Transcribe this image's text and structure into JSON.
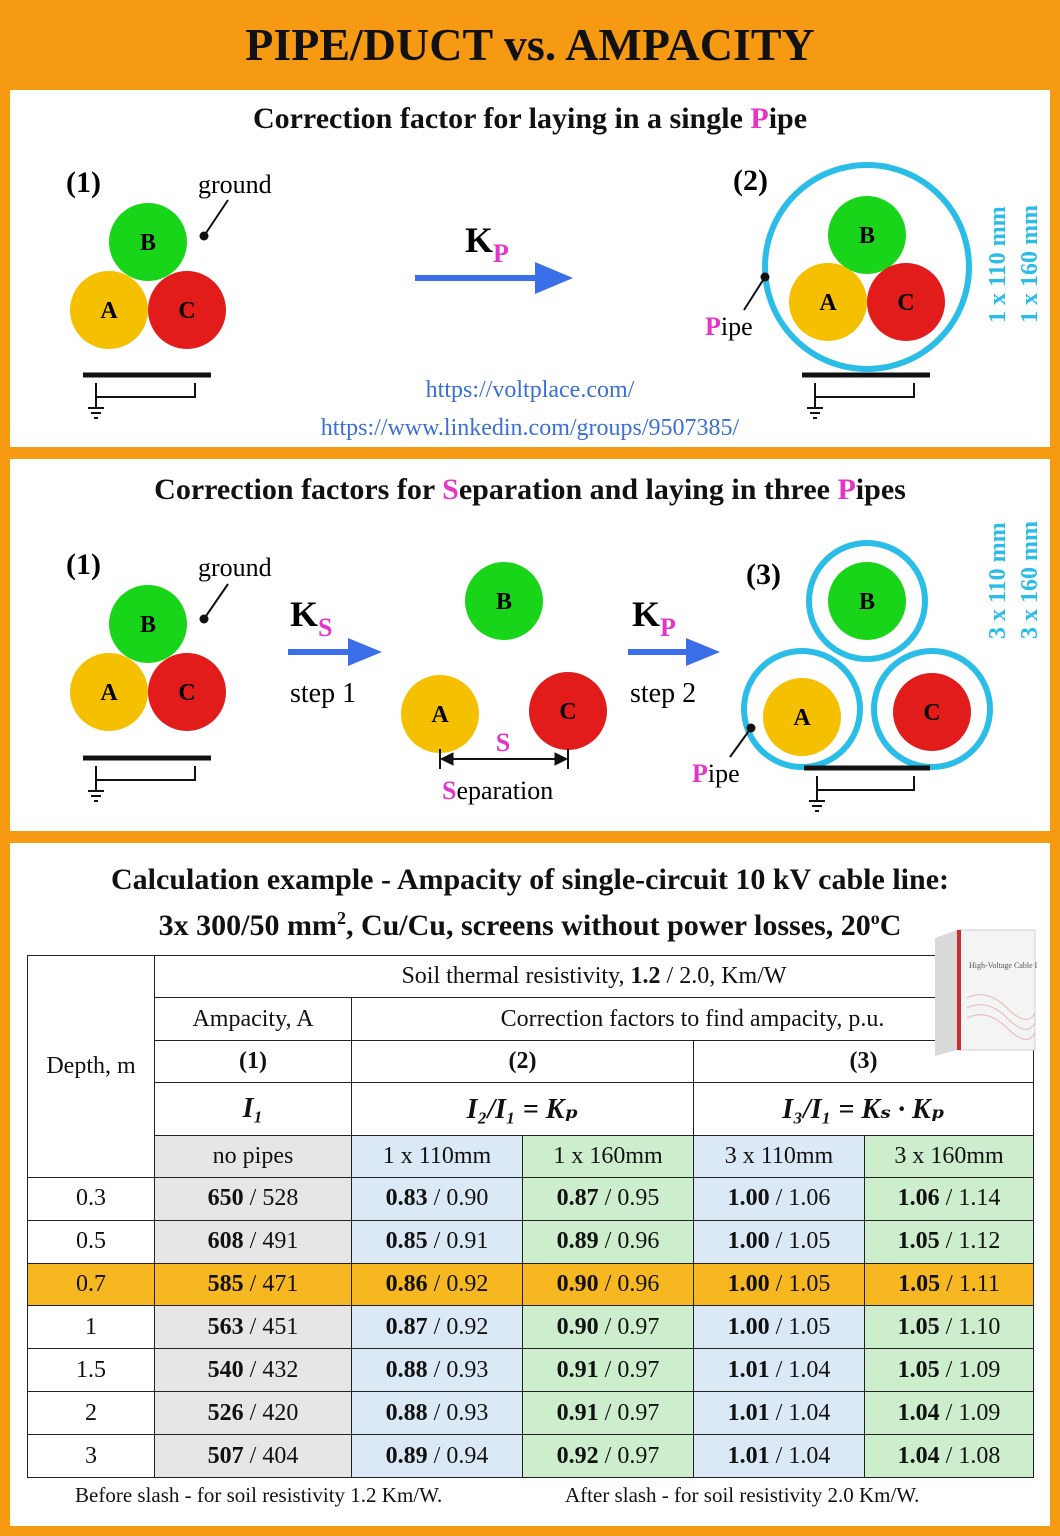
{
  "title": "PIPE/DUCT vs. AMPACITY",
  "colors": {
    "frame": "#f59a12",
    "pipe": "#29bde8",
    "arrow": "#3a6fe8",
    "accent": "#e535c9",
    "phaseA": "#f5c000",
    "phaseB": "#19d519",
    "phaseC": "#e21b1b"
  },
  "panel1": {
    "title_pre": "Correction factor for laying in a single ",
    "title_mag": "P",
    "title_post": "ipe",
    "label1": "(1)",
    "label2": "(2)",
    "ground": "ground",
    "phase_a": "A",
    "phase_b": "B",
    "phase_c": "C",
    "k_main": "K",
    "k_sub": "P",
    "pipe_mag": "P",
    "pipe_rest": "ipe",
    "size1": "1 x 110 mm",
    "size2": "1 x 160 mm",
    "link1": "https://voltplace.com/",
    "link2": "https://www.linkedin.com/groups/9507385/"
  },
  "panel2": {
    "title_pre": "Correction factors for ",
    "title_mag1": "S",
    "title_mid": "eparation and laying in three ",
    "title_mag2": "P",
    "title_post": "ipes",
    "label1": "(1)",
    "label3": "(3)",
    "ground": "ground",
    "phase_a": "A",
    "phase_b": "B",
    "phase_c": "C",
    "ks_main": "K",
    "ks_sub": "S",
    "kp_main": "K",
    "kp_sub": "P",
    "step1": "step 1",
    "step2": "step 2",
    "s_letter": "S",
    "sep_mag": "S",
    "sep_rest": "eparation",
    "pipe_mag": "P",
    "pipe_rest": "ipe",
    "size1": "3 x 110 mm",
    "size2": "3 x 160 mm"
  },
  "panel3": {
    "line1": "Calculation example - Ampacity of single-circuit 10 kV cable line:",
    "line2_pre": "3x 300/50 mm",
    "line2_sup": "2",
    "line2_mid": ", Cu/Cu, screens without power losses, 20",
    "line2_sup2": "o",
    "line2_post": "C",
    "book_title": "High-Voltage Cable Lines",
    "table": {
      "depth_header": "Depth, m",
      "soil_pre": "Soil thermal resistivity, ",
      "soil_bold": "1.2",
      "soil_post": " / 2.0, Km/W",
      "ampacity": "Ampacity, A",
      "correction": "Correction factors to find ampacity, p.u.",
      "col1": "(1)",
      "col2": "(2)",
      "col3": "(3)",
      "f1": "I₁",
      "f2": "I₂/I₁ = Kₚ",
      "f3": "I₃/I₁ = Kₛ · Kₚ",
      "sub_headers": [
        "no pipes",
        "1 x 110mm",
        "1 x 160mm",
        "3 x 110mm",
        "3 x 160mm"
      ],
      "rows": [
        {
          "depth": "0.3",
          "cells": [
            [
              "650",
              "528"
            ],
            [
              "0.83",
              "0.90"
            ],
            [
              "0.87",
              "0.95"
            ],
            [
              "1.00",
              "1.06"
            ],
            [
              "1.06",
              "1.14"
            ]
          ]
        },
        {
          "depth": "0.5",
          "cells": [
            [
              "608",
              "491"
            ],
            [
              "0.85",
              "0.91"
            ],
            [
              "0.89",
              "0.96"
            ],
            [
              "1.00",
              "1.05"
            ],
            [
              "1.05",
              "1.12"
            ]
          ]
        },
        {
          "depth": "0.7",
          "highlight": true,
          "cells": [
            [
              "585",
              "471"
            ],
            [
              "0.86",
              "0.92"
            ],
            [
              "0.90",
              "0.96"
            ],
            [
              "1.00",
              "1.05"
            ],
            [
              "1.05",
              "1.11"
            ]
          ]
        },
        {
          "depth": "1",
          "cells": [
            [
              "563",
              "451"
            ],
            [
              "0.87",
              "0.92"
            ],
            [
              "0.90",
              "0.97"
            ],
            [
              "1.00",
              "1.05"
            ],
            [
              "1.05",
              "1.10"
            ]
          ]
        },
        {
          "depth": "1.5",
          "cells": [
            [
              "540",
              "432"
            ],
            [
              "0.88",
              "0.93"
            ],
            [
              "0.91",
              "0.97"
            ],
            [
              "1.01",
              "1.04"
            ],
            [
              "1.05",
              "1.09"
            ]
          ]
        },
        {
          "depth": "2",
          "cells": [
            [
              "526",
              "420"
            ],
            [
              "0.88",
              "0.93"
            ],
            [
              "0.91",
              "0.97"
            ],
            [
              "1.01",
              "1.04"
            ],
            [
              "1.04",
              "1.09"
            ]
          ]
        },
        {
          "depth": "3",
          "cells": [
            [
              "507",
              "404"
            ],
            [
              "0.89",
              "0.94"
            ],
            [
              "0.92",
              "0.97"
            ],
            [
              "1.01",
              "1.04"
            ],
            [
              "1.04",
              "1.08"
            ]
          ]
        }
      ]
    },
    "foot_left": "Before slash - for soil resistivity 1.2 Km/W.",
    "foot_right": "After slash - for soil resistivity 2.0 Km/W."
  }
}
